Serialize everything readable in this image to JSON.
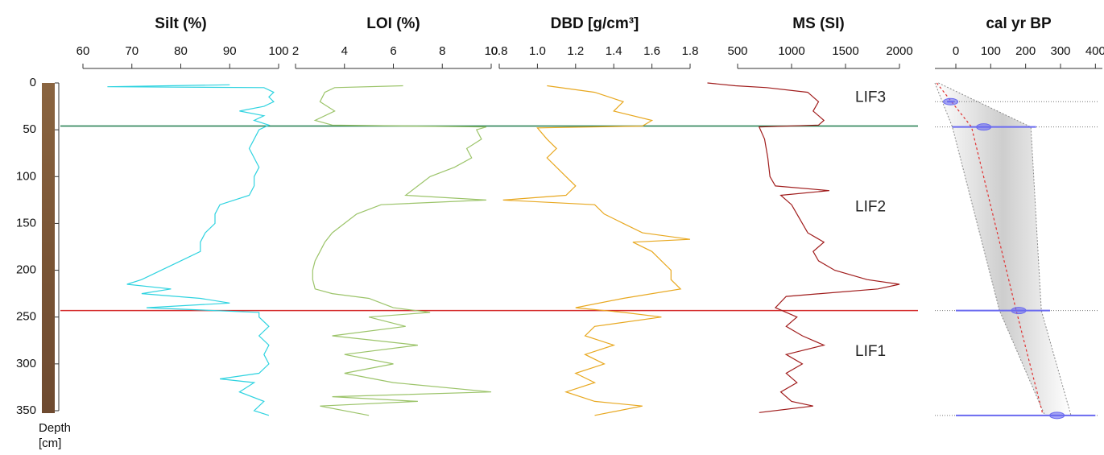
{
  "chart_data": [
    {
      "type": "line",
      "title": "Silt (%)",
      "xlim": [
        60,
        100
      ],
      "xticks": [
        60,
        70,
        80,
        90,
        100
      ],
      "ylim": [
        0,
        350
      ],
      "yticks": [
        0,
        50,
        100,
        150,
        200,
        250,
        300,
        350
      ],
      "ylabel": "Depth",
      "yunit": "[cm]",
      "boundaries": [
        {
          "value": 46,
          "color": "#1f7a4c"
        },
        {
          "value": 243,
          "color": "#d42a2a"
        }
      ],
      "series": [
        {
          "color": "#2fd3e0",
          "depth": [
            2,
            4,
            5,
            10,
            15,
            20,
            25,
            30,
            35,
            40,
            45,
            50,
            60,
            70,
            80,
            90,
            100,
            110,
            120,
            130,
            140,
            150,
            160,
            170,
            180,
            190,
            200,
            210,
            215,
            220,
            225,
            230,
            235,
            240,
            245,
            250,
            260,
            270,
            280,
            290,
            300,
            310,
            316,
            320,
            330,
            340,
            350,
            355
          ],
          "values": [
            90,
            65,
            97,
            99,
            98,
            99,
            97,
            92,
            97,
            95,
            98,
            96,
            95,
            94,
            95,
            96,
            95,
            95,
            94,
            88,
            87,
            87,
            85,
            84,
            84,
            80,
            76,
            72,
            69,
            78,
            72,
            84,
            90,
            73,
            96,
            96,
            98,
            96,
            98,
            97,
            98,
            96,
            88,
            95,
            92,
            97,
            95,
            98
          ]
        }
      ]
    },
    {
      "type": "line",
      "title": "LOI (%)",
      "xlim": [
        2,
        10
      ],
      "xticks": [
        2,
        4,
        6,
        8,
        10
      ],
      "ylim": [
        0,
        350
      ],
      "series": [
        {
          "color": "#9cc46a",
          "depth": [
            3,
            5,
            10,
            20,
            30,
            40,
            45,
            47,
            50,
            60,
            70,
            80,
            90,
            100,
            110,
            120,
            125,
            130,
            140,
            150,
            160,
            170,
            180,
            190,
            200,
            210,
            220,
            225,
            230,
            240,
            245,
            250,
            260,
            270,
            280,
            290,
            300,
            310,
            320,
            330,
            335,
            340,
            345,
            355
          ],
          "values": [
            6.4,
            3.6,
            3.2,
            3,
            3.6,
            2.8,
            3.5,
            9.8,
            9.4,
            9.6,
            9,
            9.2,
            8.5,
            7.5,
            7,
            6.5,
            9.8,
            5.5,
            4.5,
            4,
            3.5,
            3.2,
            3,
            2.8,
            2.7,
            2.7,
            2.8,
            3.5,
            5,
            6,
            7.5,
            5,
            6.5,
            3.5,
            7,
            4,
            6,
            4,
            6,
            10,
            3.5,
            7,
            3,
            5
          ]
        }
      ]
    },
    {
      "type": "line",
      "title": "DBD [g/cm³]",
      "xlim": [
        0.8,
        1.8
      ],
      "xticks": [
        0.8,
        {
          "value": 1,
          "label": "1.0"
        },
        1.2,
        1.4,
        1.6,
        1.8
      ],
      "ylim": [
        0,
        350
      ],
      "series": [
        {
          "color": "#e8a820",
          "depth": [
            3,
            10,
            20,
            30,
            40,
            46,
            48,
            60,
            70,
            80,
            90,
            100,
            110,
            120,
            125,
            130,
            140,
            150,
            160,
            167,
            170,
            180,
            190,
            200,
            210,
            220,
            230,
            240,
            245,
            250,
            260,
            270,
            280,
            290,
            300,
            310,
            320,
            330,
            340,
            345,
            355
          ],
          "values": [
            1.05,
            1.3,
            1.45,
            1.4,
            1.6,
            1.55,
            1.0,
            1.05,
            1.1,
            1.05,
            1.1,
            1.15,
            1.2,
            1.15,
            0.82,
            1.3,
            1.35,
            1.45,
            1.55,
            1.8,
            1.5,
            1.6,
            1.65,
            1.7,
            1.7,
            1.75,
            1.45,
            1.2,
            1.45,
            1.65,
            1.3,
            1.25,
            1.4,
            1.25,
            1.35,
            1.2,
            1.3,
            1.15,
            1.3,
            1.55,
            1.3
          ]
        }
      ]
    },
    {
      "type": "line",
      "title": "MS (SI)",
      "xlim": [
        500,
        2000
      ],
      "xticks": [
        500,
        1000,
        1500,
        2000
      ],
      "ylim": [
        0,
        350
      ],
      "annotations": [
        {
          "text": "LIF3",
          "depth": 16
        },
        {
          "text": "LIF2",
          "depth": 133
        },
        {
          "text": "LIF1",
          "depth": 287
        }
      ],
      "series": [
        {
          "color": "#a01c1c",
          "depth": [
            0,
            3,
            5,
            10,
            20,
            30,
            40,
            45,
            47,
            60,
            80,
            100,
            110,
            115,
            120,
            130,
            140,
            150,
            160,
            170,
            180,
            190,
            200,
            210,
            215,
            220,
            228,
            240,
            250,
            260,
            270,
            280,
            290,
            300,
            310,
            320,
            330,
            340,
            345,
            352
          ],
          "values": [
            220,
            480,
            770,
            1150,
            1250,
            1200,
            1300,
            1250,
            700,
            750,
            780,
            800,
            850,
            1350,
            900,
            1000,
            1050,
            1100,
            1150,
            1300,
            1200,
            1250,
            1400,
            1700,
            2000,
            1800,
            950,
            850,
            1050,
            950,
            1100,
            1300,
            950,
            1100,
            950,
            1050,
            900,
            1000,
            1200,
            700
          ]
        }
      ]
    },
    {
      "type": "agemodel",
      "title": "cal yr BP",
      "xlim": [
        -60,
        420
      ],
      "xticks": [
        0,
        100,
        200,
        300,
        400
      ],
      "ylim": [
        0,
        350
      ],
      "median": {
        "color": "#e03030",
        "depth": [
          0,
          47,
          243,
          355
        ],
        "values": [
          -55,
          45,
          173,
          250
        ]
      },
      "lower": {
        "color": "#888888",
        "depth": [
          0,
          47,
          243,
          355
        ],
        "values": [
          -60,
          -10,
          125,
          255
        ]
      },
      "upper": {
        "color": "#888888",
        "depth": [
          0,
          47,
          243,
          355
        ],
        "values": [
          -50,
          215,
          245,
          330
        ]
      },
      "dates": {
        "color": "#6a6af0",
        "depth": [
          20,
          47,
          243,
          355
        ],
        "values": [
          -15,
          80,
          180,
          290
        ],
        "low": [
          -25,
          -10,
          0,
          0
        ],
        "high": [
          -5,
          230,
          270,
          400
        ]
      }
    }
  ]
}
